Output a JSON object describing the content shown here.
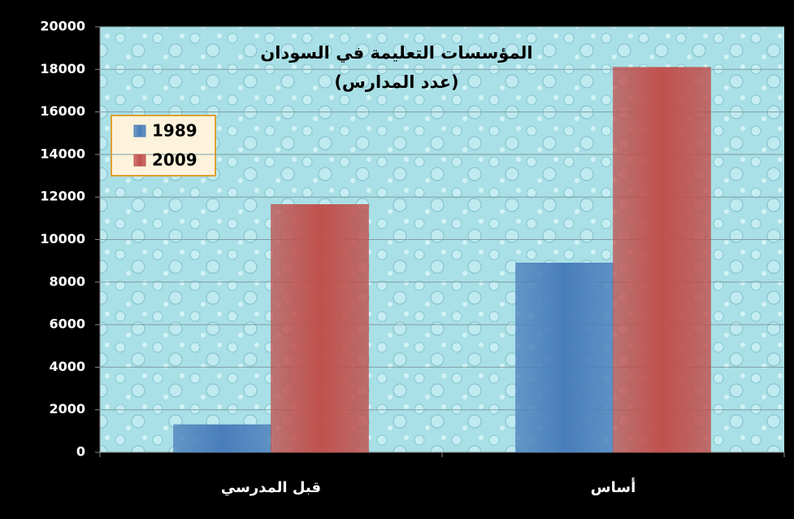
{
  "chart_data": {
    "type": "bar",
    "title": "المؤسسات التعليمة في السودان",
    "subtitle": "(عدد المدارس)",
    "categories": [
      "قبل المدرسي",
      "أساس"
    ],
    "series": [
      {
        "name": "1989",
        "color": "#4a7ebb",
        "values": [
          1300,
          8900
        ]
      },
      {
        "name": "2009",
        "color": "#c0504d",
        "values": [
          11650,
          18100
        ]
      }
    ],
    "ylim": [
      0,
      20000
    ],
    "yticks": [
      0,
      2000,
      4000,
      6000,
      8000,
      10000,
      12000,
      14000,
      16000,
      18000,
      20000
    ],
    "grid": true,
    "legend": "upper left"
  }
}
